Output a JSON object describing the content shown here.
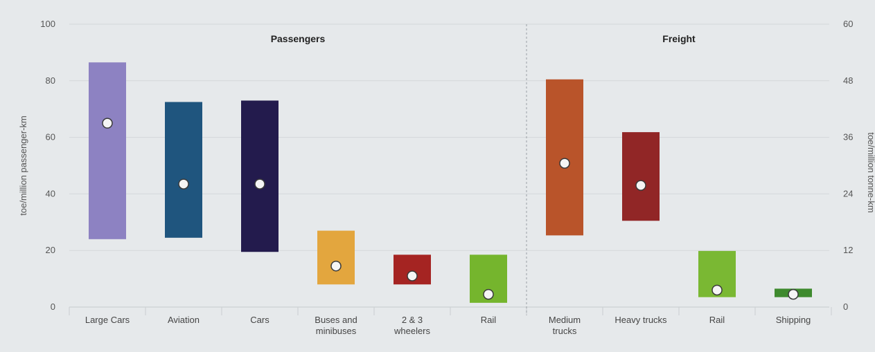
{
  "chart_data": {
    "type": "bar",
    "subtype": "floating-range-with-average-marker",
    "y_left": {
      "label": "toe/million passenger-km",
      "min": 0,
      "max": 100,
      "ticks": [
        0,
        20,
        40,
        60,
        80,
        100
      ]
    },
    "y_right": {
      "label": "toe/million tonne-km",
      "min": 0,
      "max": 60,
      "ticks": [
        0,
        12,
        24,
        36,
        48,
        60
      ]
    },
    "grid": true,
    "groups": [
      {
        "title": "Passengers",
        "axis": "left",
        "items": [
          {
            "label": [
              "Large Cars"
            ],
            "low": 24,
            "high": 86.5,
            "marker": 65,
            "color": "#8d82c2"
          },
          {
            "label": [
              "Aviation"
            ],
            "low": 24.5,
            "high": 72.5,
            "marker": 43.5,
            "color": "#1f557e"
          },
          {
            "label": [
              "Cars"
            ],
            "low": 19.5,
            "high": 73,
            "marker": 43.5,
            "color": "#231b4d"
          },
          {
            "label": [
              "Buses and",
              "minibuses"
            ],
            "low": 8,
            "high": 27,
            "marker": 14.5,
            "color": "#e3a63e"
          },
          {
            "label": [
              "2 & 3",
              "wheelers"
            ],
            "low": 8,
            "high": 18.5,
            "marker": 11,
            "color": "#a52422"
          },
          {
            "label": [
              "Rail"
            ],
            "low": 1.5,
            "high": 18.5,
            "marker": 4.5,
            "color": "#75b52d"
          }
        ]
      },
      {
        "title": "Freight",
        "axis": "right",
        "items": [
          {
            "label": [
              "Medium",
              "trucks"
            ],
            "low": 15.2,
            "high": 48.3,
            "marker": 30.5,
            "color": "#b9542a"
          },
          {
            "label": [
              "Heavy trucks"
            ],
            "low": 18.3,
            "high": 37.1,
            "marker": 25.8,
            "color": "#912626"
          },
          {
            "label": [
              "Rail"
            ],
            "low": 2.1,
            "high": 11.9,
            "marker": 3.6,
            "color": "#7ab833"
          },
          {
            "label": [
              "Shipping"
            ],
            "low": 2.1,
            "high": 3.9,
            "marker": 2.7,
            "color": "#3e8a2e"
          }
        ]
      }
    ]
  }
}
